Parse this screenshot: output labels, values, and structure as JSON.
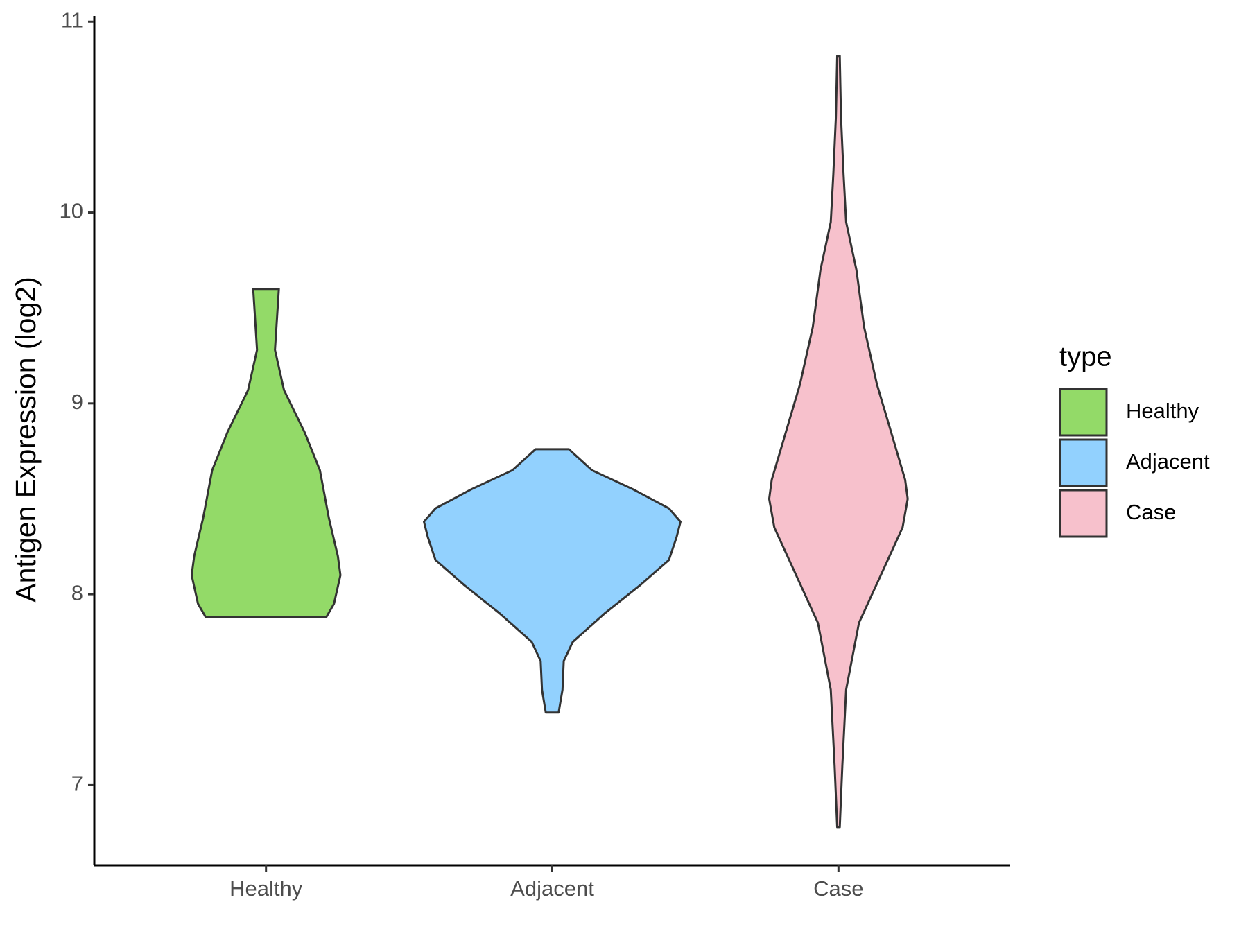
{
  "chart_data": {
    "type": "violin",
    "y_label": "Antigen Expression (log2)",
    "categories": [
      "Healthy",
      "Adjacent",
      "Case"
    ],
    "legend_title": "type",
    "legend_position": "right",
    "ylim": [
      6.58,
      11.03
    ],
    "yticks": [
      7,
      8,
      9,
      10,
      11
    ],
    "series": [
      {
        "name": "Healthy",
        "color": "#93da68",
        "values": [
          9.6,
          9.28,
          9.07,
          8.85,
          8.65,
          8.4,
          8.2,
          8.1,
          7.95,
          7.88
        ],
        "density": [
          0.1,
          0.07,
          0.14,
          0.3,
          0.42,
          0.49,
          0.56,
          0.58,
          0.53,
          0.47
        ]
      },
      {
        "name": "Adjacent",
        "color": "#92d1fe",
        "values": [
          8.76,
          8.65,
          8.55,
          8.45,
          8.38,
          8.3,
          8.18,
          8.05,
          7.9,
          7.75,
          7.65,
          7.5,
          7.38
        ],
        "density": [
          0.13,
          0.31,
          0.63,
          0.91,
          1.0,
          0.97,
          0.91,
          0.69,
          0.41,
          0.16,
          0.09,
          0.08,
          0.05
        ]
      },
      {
        "name": "Case",
        "color": "#f7c1cc",
        "values": [
          10.82,
          10.5,
          10.2,
          9.95,
          9.7,
          9.4,
          9.1,
          8.85,
          8.6,
          8.5,
          8.35,
          8.1,
          7.85,
          7.5,
          7.1,
          6.78
        ],
        "density": [
          0.01,
          0.02,
          0.04,
          0.06,
          0.14,
          0.2,
          0.3,
          0.41,
          0.52,
          0.54,
          0.5,
          0.33,
          0.16,
          0.06,
          0.03,
          0.01
        ]
      }
    ]
  }
}
